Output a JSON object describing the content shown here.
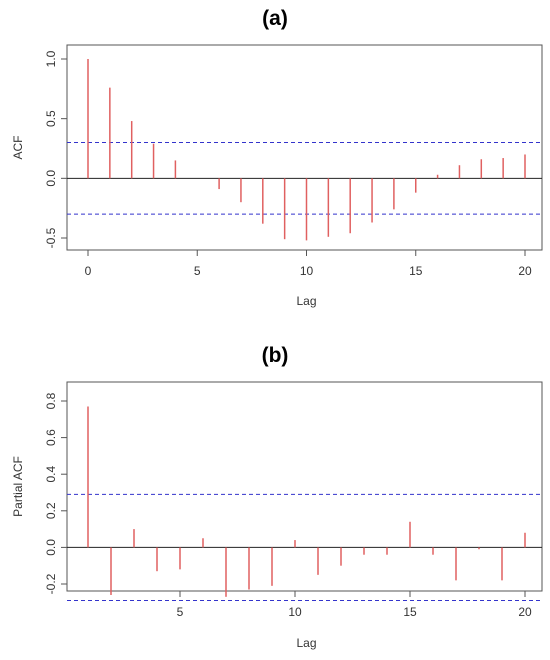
{
  "chart_data": [
    {
      "type": "bar",
      "title": "(a)",
      "xlabel": "Lag",
      "ylabel": "ACF",
      "xlim": [
        0,
        20
      ],
      "ylim": [
        -0.6,
        1.0
      ],
      "xticks": [
        0,
        5,
        10,
        15,
        20
      ],
      "yticks": [
        -0.5,
        0.0,
        0.5,
        1.0
      ],
      "ytick_labels": [
        "-0.5",
        "0.0",
        "0.5",
        "1.0"
      ],
      "confidence_band": 0.3,
      "x": [
        0,
        1,
        2,
        3,
        4,
        5,
        6,
        7,
        8,
        9,
        10,
        11,
        12,
        13,
        14,
        15,
        16,
        17,
        18,
        19,
        20
      ],
      "values": [
        1.0,
        0.76,
        0.48,
        0.29,
        0.15,
        0.0,
        -0.09,
        -0.2,
        -0.38,
        -0.51,
        -0.52,
        -0.49,
        -0.46,
        -0.37,
        -0.26,
        -0.12,
        0.03,
        0.11,
        0.16,
        0.17,
        0.2
      ],
      "colors": {
        "bar": "#e06060",
        "band": "#3333cc",
        "axis": "#555555"
      }
    },
    {
      "type": "bar",
      "title": "(b)",
      "xlabel": "Lag",
      "ylabel": "Partial ACF",
      "xlim": [
        1,
        20
      ],
      "ylim": [
        -0.3,
        0.8
      ],
      "xticks": [
        5,
        10,
        15,
        20
      ],
      "yticks": [
        -0.2,
        0.0,
        0.2,
        0.4,
        0.6,
        0.8
      ],
      "ytick_labels": [
        "-0.2",
        "0.0",
        "0.2",
        "0.4",
        "0.6",
        "0.8"
      ],
      "confidence_band": 0.29,
      "x": [
        1,
        2,
        3,
        4,
        5,
        6,
        7,
        8,
        9,
        10,
        11,
        12,
        13,
        14,
        15,
        16,
        17,
        18,
        19,
        20
      ],
      "values": [
        0.77,
        -0.26,
        0.1,
        -0.13,
        -0.12,
        0.05,
        -0.27,
        -0.23,
        -0.21,
        0.04,
        -0.15,
        -0.1,
        -0.04,
        -0.04,
        0.14,
        -0.04,
        -0.18,
        -0.01,
        -0.18,
        0.08
      ],
      "colors": {
        "bar": "#e06060",
        "band": "#3333cc",
        "axis": "#555555"
      }
    }
  ]
}
